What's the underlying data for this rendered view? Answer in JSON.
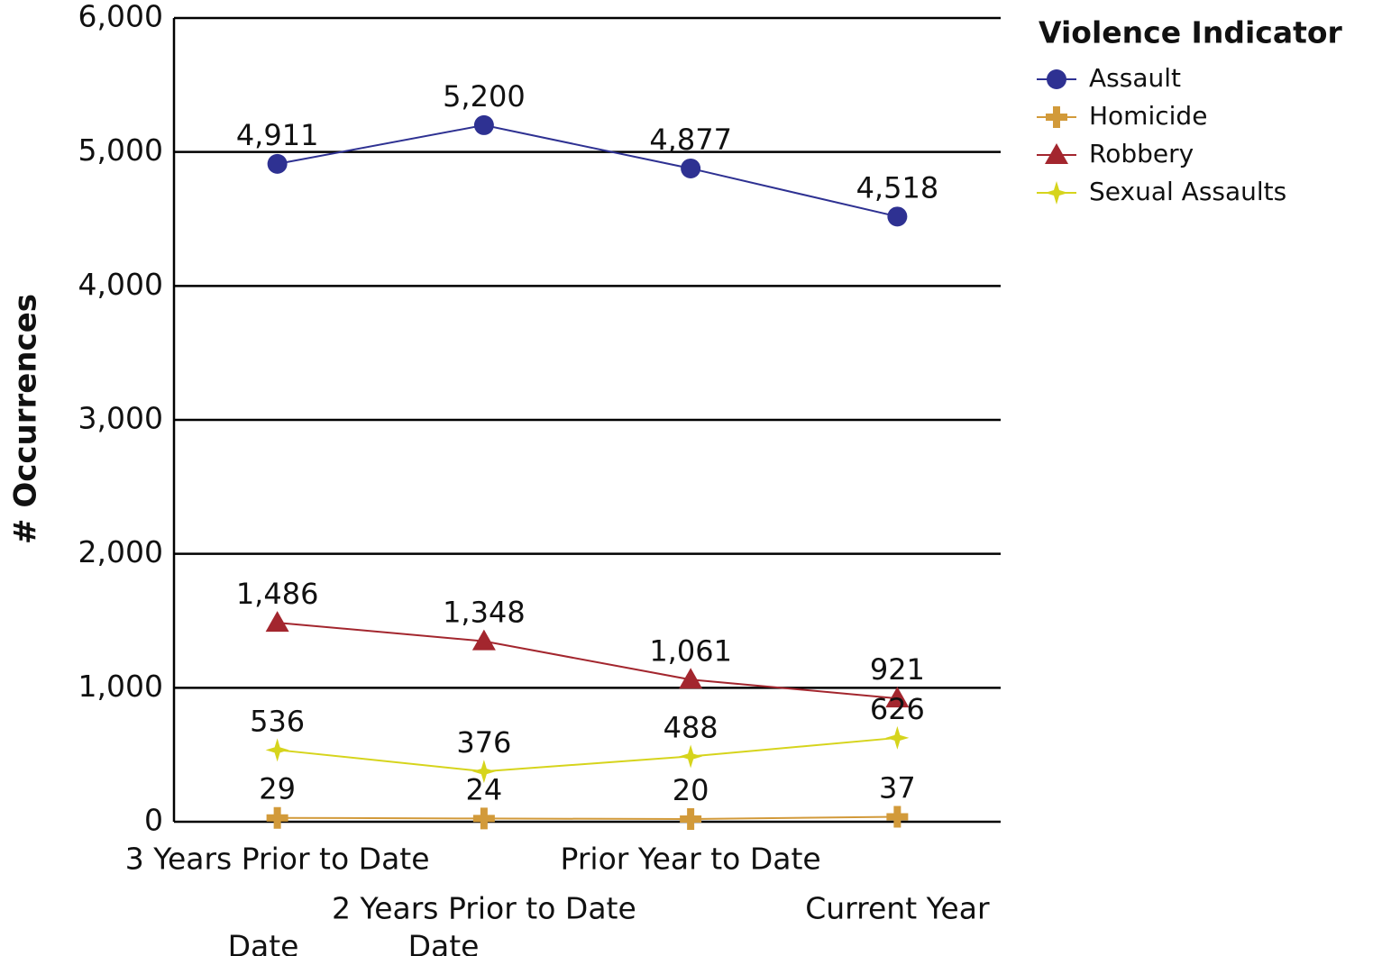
{
  "chart_data": {
    "type": "line",
    "y_label": "# Occurrences",
    "legend_title": "Violence Indicator",
    "legend_position": "right",
    "grid": true,
    "categories": [
      "3 Years Prior to Date",
      "2 Years Prior to Date",
      "Prior Year to Date",
      "Current Year"
    ],
    "clipped_labels": [
      "Date",
      "Date"
    ],
    "ylim": [
      0,
      6000
    ],
    "yticks": [
      0,
      {
        "value": 1000,
        "label": "1,000"
      },
      {
        "value": 2000,
        "label": "2,000"
      },
      {
        "value": 3000,
        "label": "3,000"
      },
      {
        "value": 4000,
        "label": "4,000"
      },
      {
        "value": 5000,
        "label": "5,000"
      },
      {
        "value": 6000,
        "label": "6,000"
      }
    ],
    "series": [
      {
        "name": "Assault",
        "color": "#2e3192",
        "marker": "circle",
        "values": [
          4911,
          5200,
          4877,
          4518
        ],
        "value_labels": [
          "4,911",
          "5,200",
          "4,877",
          "4,518"
        ]
      },
      {
        "name": "Homicide",
        "color": "#d29a3a",
        "marker": "cross",
        "values": [
          29,
          24,
          20,
          37
        ]
      },
      {
        "name": "Robbery",
        "color": "#a3262e",
        "marker": "triangle",
        "values": [
          1486,
          1348,
          1061,
          921
        ],
        "value_labels": [
          "1,486",
          "1,348",
          "1,061",
          "921"
        ]
      },
      {
        "name": "Sexual Assaults",
        "color": "#d6d41c",
        "marker": "star",
        "values": [
          536,
          376,
          488,
          626
        ]
      }
    ]
  }
}
